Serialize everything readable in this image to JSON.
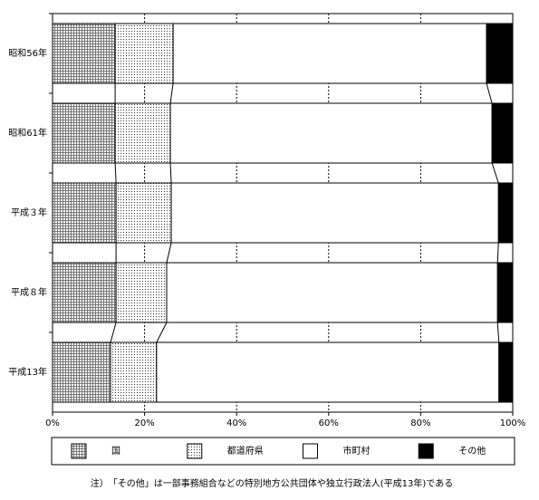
{
  "chart_data": {
    "type": "stacked-bar-horizontal",
    "categories": [
      "昭和56年",
      "昭和61年",
      "平成３年",
      "平成８年",
      "平成13年"
    ],
    "series": [
      {
        "name": "国",
        "color": "#ffffff",
        "pattern": "grid",
        "values": [
          13.6,
          13.6,
          13.8,
          13.8,
          12.6
        ]
      },
      {
        "name": "都道府県",
        "color": "#ffffff",
        "pattern": "dots",
        "values": [
          12.6,
          12.0,
          12.0,
          11.0,
          10.0
        ]
      },
      {
        "name": "市町村",
        "color": "#ffffff",
        "pattern": "none",
        "values": [
          68.1,
          69.9,
          71.1,
          71.9,
          74.4
        ]
      },
      {
        "name": "その他",
        "color": "#000000",
        "pattern": "none",
        "values": [
          5.7,
          4.5,
          3.1,
          3.3,
          3.0
        ]
      }
    ],
    "xlim": [
      0,
      100
    ],
    "xticks": [
      {
        "value": 0,
        "label": "0%"
      },
      {
        "value": 20,
        "label": "20%"
      },
      {
        "value": 40,
        "label": "40%"
      },
      {
        "value": 60,
        "label": "60%"
      },
      {
        "value": 80,
        "label": "80%"
      },
      {
        "value": 100,
        "label": "100%"
      }
    ],
    "grid": true,
    "series_lines": true,
    "note": "注）　「その他」は一部事務組合などの特別地方公共団体や独立行政法人(平成13年)である"
  }
}
